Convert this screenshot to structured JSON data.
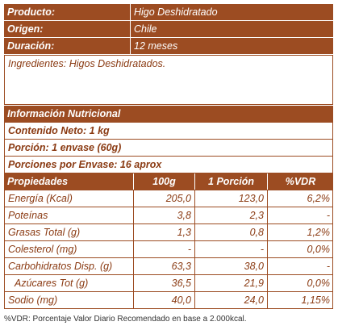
{
  "product_info": [
    {
      "label": "Producto:",
      "value": "Higo Deshidratado"
    },
    {
      "label": "Origen:",
      "value": "Chile"
    },
    {
      "label": "Duración:",
      "value": "12 meses"
    }
  ],
  "ingredients": "Ingredientes: Higos Deshidratados.",
  "nutrition": {
    "title": "Información Nutricional",
    "info_rows": [
      "Contenido Neto: 1 kg",
      "Porción: 1 envase (60g)",
      "Porciones por Envase: 16 aprox"
    ],
    "header": [
      "Propiedades",
      "100g",
      "1 Porción",
      "%VDR"
    ],
    "rows": [
      [
        "Energía (Kcal)",
        "205,0",
        "123,0",
        "6,2%"
      ],
      [
        "Poteínas",
        "3,8",
        "2,3",
        "-"
      ],
      [
        "Grasas Total (g)",
        "1,3",
        "0,8",
        "1,2%"
      ],
      [
        "Colesterol (mg)",
        "-",
        "-",
        "0,0%"
      ],
      [
        "Carbohidratos Disp. (g)",
        "63,3",
        "38,0",
        "-"
      ],
      [
        "Azúcares Tot (g)",
        "36,5",
        "21,9",
        "0,0%"
      ],
      [
        "Sodio (mg)",
        "40,0",
        "24,0",
        "1,15%"
      ]
    ],
    "footnote": "%VDR: Porcentaje Valor Diario Recomendado en base a 2.000kcal."
  }
}
